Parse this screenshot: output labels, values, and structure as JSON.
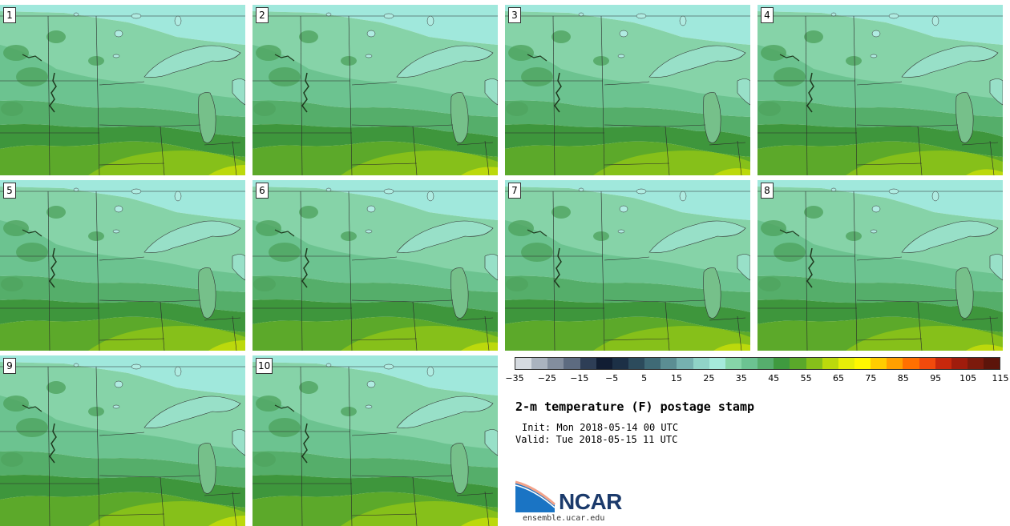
{
  "panels": [
    {
      "label": "1"
    },
    {
      "label": "2"
    },
    {
      "label": "3"
    },
    {
      "label": "4"
    },
    {
      "label": "5"
    },
    {
      "label": "6"
    },
    {
      "label": "7"
    },
    {
      "label": "8"
    },
    {
      "label": "9"
    },
    {
      "label": "10"
    }
  ],
  "colorbar": {
    "colors": [
      "#d6dbe1",
      "#aab3bf",
      "#838e9e",
      "#5d6b80",
      "#2e3e56",
      "#111d33",
      "#1c3046",
      "#2c4b5c",
      "#3f6a76",
      "#5b8e93",
      "#76b1b0",
      "#90d3c7",
      "#a5eadb",
      "#86d6a8",
      "#6cc392",
      "#56ae6d",
      "#3f9a3f",
      "#5aa82a",
      "#86c01a",
      "#bcd90c",
      "#e6ee08",
      "#fff700",
      "#ffcc00",
      "#ffa000",
      "#ff7000",
      "#f24a0c",
      "#c8280c",
      "#a01c0c",
      "#7c1a0c",
      "#5c140a"
    ],
    "tick_labels": [
      "−35",
      "−25",
      "−15",
      "−5",
      "5",
      "15",
      "25",
      "35",
      "45",
      "55",
      "65",
      "75",
      "85",
      "95",
      "105",
      "115"
    ]
  },
  "title": "2-m temperature (F) postage stamp",
  "init": "Init: Mon 2018-05-14 00 UTC",
  "valid": "Valid: Tue 2018-05-15 11 UTC",
  "logo_text": "NCAR",
  "url": "ensemble.ucar.edu"
}
